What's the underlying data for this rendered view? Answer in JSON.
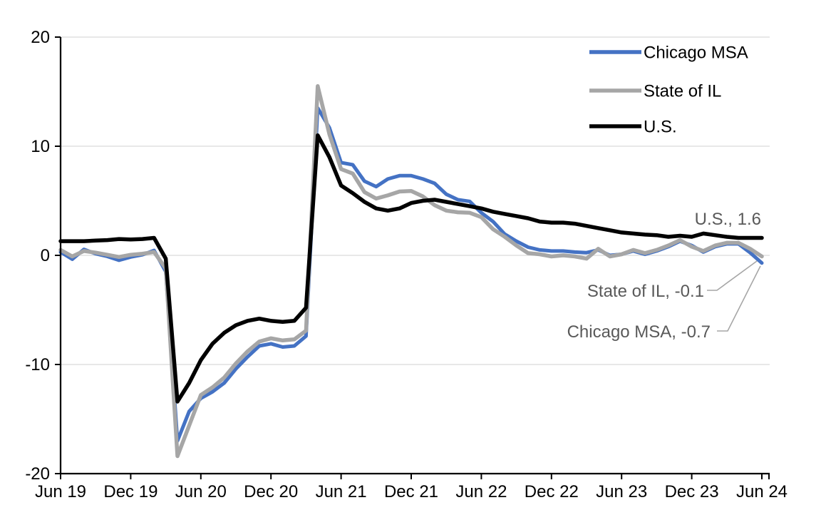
{
  "chart_data": {
    "type": "line",
    "title": "",
    "frequency": "monthly",
    "x_start": "Jun 2019",
    "x_end": "Jun 2024",
    "x_tick_labels": [
      "Jun 19",
      "Dec 19",
      "Jun 20",
      "Dec 20",
      "Jun 21",
      "Dec 21",
      "Jun 22",
      "Dec 22",
      "Jun 23",
      "Dec 23",
      "Jun 24"
    ],
    "y_tick_labels": [
      "20",
      "10",
      "0",
      "-10",
      "-20"
    ],
    "y_ticks": [
      20,
      10,
      0,
      -10,
      -20
    ],
    "ylim": [
      -20,
      20
    ],
    "grid": "horizontal-gridlines-on",
    "legend_position": "top-right",
    "gridline_color": "#d9d9d9",
    "axis_color": "#000000",
    "annotation_color": "#595959",
    "leader_line_color": "#a6a6a6",
    "series": [
      {
        "name": "Chicago MSA",
        "color": "#4472C4",
        "end_label": "Chicago MSA, -0.7",
        "end_value": -0.7,
        "values": [
          0.3,
          -0.35,
          0.55,
          0.15,
          -0.1,
          -0.45,
          -0.15,
          0.05,
          0.45,
          -1.5,
          -17.0,
          -14.3,
          -13.1,
          -12.5,
          -11.7,
          -10.4,
          -9.3,
          -8.3,
          -8.1,
          -8.4,
          -8.3,
          -7.4,
          13.5,
          11.7,
          8.5,
          8.3,
          6.8,
          6.3,
          7.0,
          7.3,
          7.3,
          7.0,
          6.6,
          5.6,
          5.1,
          4.95,
          3.9,
          3.1,
          1.95,
          1.3,
          0.75,
          0.5,
          0.4,
          0.4,
          0.3,
          0.25,
          0.5,
          0.0,
          0.1,
          0.4,
          0.1,
          0.4,
          0.8,
          1.3,
          0.9,
          0.3,
          0.8,
          1.05,
          1.05,
          0.25,
          -0.7
        ]
      },
      {
        "name": "State of IL",
        "color": "#A6A6A6",
        "end_label": "State of IL, -0.1",
        "end_value": -0.1,
        "values": [
          0.5,
          -0.1,
          0.4,
          0.25,
          0.05,
          -0.15,
          0.05,
          0.15,
          0.3,
          -1.2,
          -18.4,
          -15.6,
          -12.8,
          -12.1,
          -11.2,
          -9.9,
          -8.8,
          -7.9,
          -7.6,
          -7.8,
          -7.7,
          -6.9,
          15.5,
          11.1,
          7.9,
          7.5,
          5.8,
          5.2,
          5.5,
          5.85,
          5.9,
          5.4,
          4.6,
          4.1,
          3.95,
          3.9,
          3.5,
          2.4,
          1.7,
          0.9,
          0.2,
          0.1,
          -0.1,
          0.0,
          -0.1,
          -0.3,
          0.6,
          -0.1,
          0.1,
          0.5,
          0.2,
          0.5,
          0.9,
          1.4,
          0.8,
          0.4,
          0.9,
          1.15,
          1.15,
          0.6,
          -0.1
        ]
      },
      {
        "name": "U.S.",
        "color": "#000000",
        "end_label": "U.S., 1.6",
        "end_value": 1.6,
        "values": [
          1.3,
          1.3,
          1.3,
          1.35,
          1.4,
          1.5,
          1.45,
          1.5,
          1.6,
          -0.3,
          -13.4,
          -11.7,
          -9.6,
          -8.1,
          -7.1,
          -6.4,
          -6.0,
          -5.8,
          -6.0,
          -6.1,
          -6.0,
          -4.8,
          11.0,
          9.0,
          6.4,
          5.7,
          4.9,
          4.3,
          4.1,
          4.3,
          4.8,
          5.0,
          5.1,
          4.9,
          4.7,
          4.5,
          4.3,
          4.0,
          3.8,
          3.6,
          3.4,
          3.1,
          3.0,
          3.0,
          2.9,
          2.7,
          2.5,
          2.3,
          2.1,
          2.0,
          1.9,
          1.85,
          1.7,
          1.8,
          1.7,
          2.0,
          1.85,
          1.7,
          1.6,
          1.6,
          1.6
        ]
      }
    ],
    "legend_order": [
      "Chicago MSA",
      "State of IL",
      "U.S."
    ]
  }
}
